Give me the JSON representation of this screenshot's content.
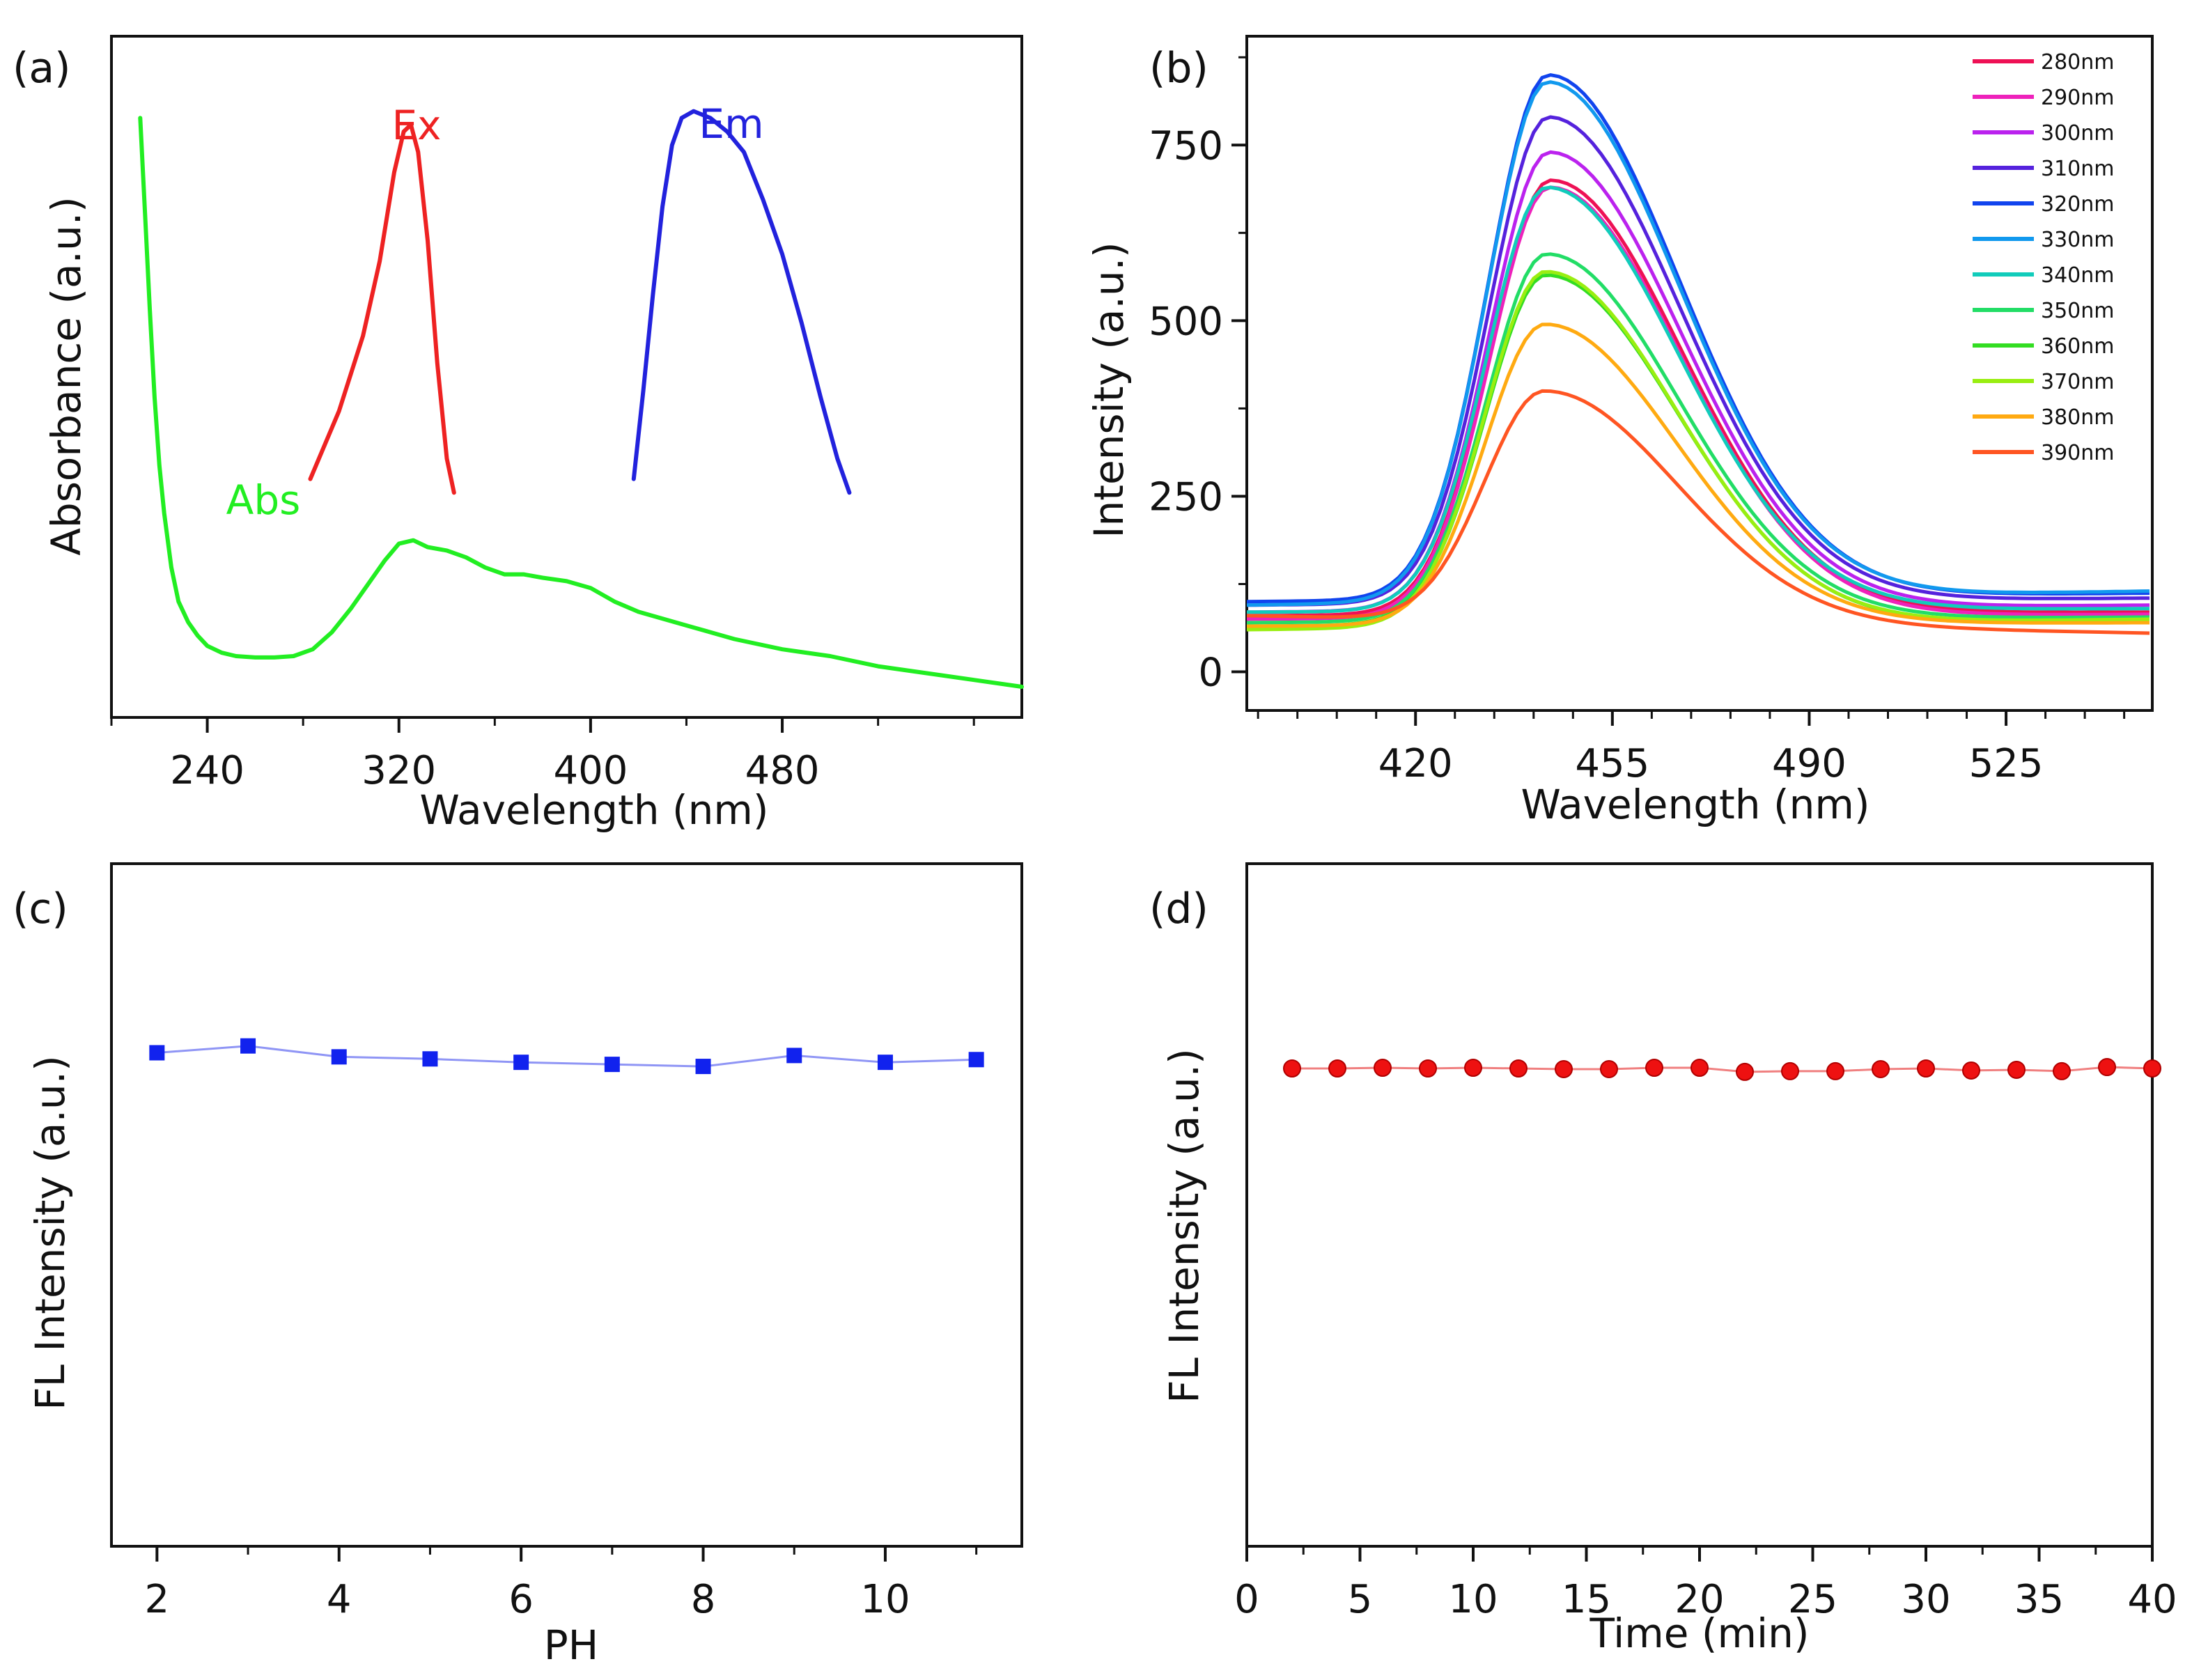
{
  "chart_data": [
    {
      "id": "a",
      "panel_label": "(a)",
      "type": "line",
      "xlabel": "Wavelength (nm)",
      "ylabel": "Absorbance (a.u.)",
      "xlim": [
        200,
        580
      ],
      "ylim": [
        0,
        1
      ],
      "xticks": [
        240,
        320,
        400,
        480
      ],
      "yticks_shown": false,
      "series": [
        {
          "name": "Ex",
          "color": "#ee2222",
          "x": [
            283,
            295,
            305,
            312,
            318,
            322,
            325,
            328,
            332,
            336,
            340,
            343
          ],
          "y": [
            0.35,
            0.45,
            0.56,
            0.67,
            0.8,
            0.86,
            0.87,
            0.83,
            0.7,
            0.52,
            0.38,
            0.33
          ]
        },
        {
          "name": "Em",
          "color": "#2222dd",
          "x": [
            418,
            422,
            426,
            430,
            434,
            438,
            443,
            450,
            457,
            464,
            472,
            480,
            488,
            496,
            503,
            508
          ],
          "y": [
            0.35,
            0.48,
            0.62,
            0.75,
            0.84,
            0.88,
            0.89,
            0.88,
            0.86,
            0.83,
            0.76,
            0.68,
            0.58,
            0.47,
            0.38,
            0.33
          ]
        },
        {
          "name": "Abs",
          "color": "#22ee22",
          "x": [
            212,
            214,
            216,
            218,
            220,
            222,
            225,
            228,
            232,
            236,
            240,
            246,
            252,
            260,
            268,
            276,
            284,
            292,
            300,
            308,
            314,
            320,
            326,
            332,
            340,
            348,
            356,
            364,
            372,
            380,
            390,
            400,
            410,
            420,
            440,
            460,
            480,
            500,
            520,
            540,
            560,
            580
          ],
          "y": [
            0.88,
            0.74,
            0.6,
            0.47,
            0.37,
            0.3,
            0.22,
            0.17,
            0.14,
            0.12,
            0.105,
            0.095,
            0.09,
            0.088,
            0.088,
            0.09,
            0.1,
            0.125,
            0.16,
            0.2,
            0.23,
            0.255,
            0.26,
            0.25,
            0.245,
            0.235,
            0.22,
            0.21,
            0.21,
            0.205,
            0.2,
            0.19,
            0.17,
            0.155,
            0.135,
            0.115,
            0.1,
            0.09,
            0.075,
            0.065,
            0.055,
            0.045
          ]
        }
      ],
      "annotations": [
        {
          "text": "Ex",
          "color": "#ee2222"
        },
        {
          "text": "Em",
          "color": "#2222dd"
        },
        {
          "text": "Abs",
          "color": "#22ee22"
        }
      ]
    },
    {
      "id": "b",
      "panel_label": "(b)",
      "type": "line",
      "xlabel": "Wavelength (nm)",
      "ylabel": "Intensity (a.u.)",
      "xlim": [
        390,
        551
      ],
      "ylim": [
        -55,
        905
      ],
      "xticks": [
        420,
        455,
        490,
        525
      ],
      "yticks": [
        0,
        250,
        500,
        750
      ],
      "legend_position": "top-right",
      "series": [
        {
          "name": "280nm",
          "color": "#ee1155",
          "peak": 700,
          "start": 80,
          "end": 85
        },
        {
          "name": "290nm",
          "color": "#ee22bb",
          "peak": 690,
          "start": 75,
          "end": 82
        },
        {
          "name": "300nm",
          "color": "#bb22ee",
          "peak": 740,
          "start": 85,
          "end": 95
        },
        {
          "name": "310nm",
          "color": "#5522dd",
          "peak": 790,
          "start": 95,
          "end": 105
        },
        {
          "name": "320nm",
          "color": "#1144ee",
          "peak": 850,
          "start": 100,
          "end": 112
        },
        {
          "name": "330nm",
          "color": "#1199ee",
          "peak": 840,
          "start": 95,
          "end": 115
        },
        {
          "name": "340nm",
          "color": "#11ccbb",
          "peak": 690,
          "start": 85,
          "end": 90
        },
        {
          "name": "350nm",
          "color": "#22dd66",
          "peak": 595,
          "start": 70,
          "end": 78
        },
        {
          "name": "360nm",
          "color": "#33dd22",
          "peak": 565,
          "start": 65,
          "end": 72
        },
        {
          "name": "370nm",
          "color": "#99ee11",
          "peak": 570,
          "start": 60,
          "end": 75
        },
        {
          "name": "380nm",
          "color": "#ffaa11",
          "peak": 495,
          "start": 65,
          "end": 70
        },
        {
          "name": "390nm",
          "color": "#ff5522",
          "peak": 400,
          "start": 80,
          "end": 55
        }
      ]
    },
    {
      "id": "c",
      "panel_label": "(c)",
      "type": "line",
      "xlabel": "PH",
      "ylabel": "FL Intensity (a.u.)",
      "xlim": [
        1.5,
        11.5
      ],
      "ylim": [
        0,
        1
      ],
      "xticks": [
        2,
        4,
        6,
        8,
        10
      ],
      "yticks_shown": false,
      "marker": "square",
      "series": [
        {
          "name": "FL",
          "color": "#1122ee",
          "x": [
            2,
            3,
            4,
            5,
            6,
            7,
            8,
            9,
            10,
            11
          ],
          "y": [
            0.723,
            0.733,
            0.717,
            0.714,
            0.709,
            0.706,
            0.703,
            0.719,
            0.709,
            0.713
          ]
        }
      ]
    },
    {
      "id": "d",
      "panel_label": "(d)",
      "type": "line",
      "xlabel": "Time (min)",
      "ylabel": "FL Intensity (a.u.)",
      "xlim": [
        0,
        40
      ],
      "ylim": [
        0,
        1
      ],
      "xticks": [
        0,
        5,
        10,
        15,
        20,
        25,
        30,
        35,
        40
      ],
      "yticks_shown": false,
      "marker": "circle",
      "series": [
        {
          "name": "FL",
          "color": "#ee1111",
          "x": [
            2,
            4,
            6,
            8,
            10,
            12,
            14,
            16,
            18,
            20,
            22,
            24,
            26,
            28,
            30,
            32,
            34,
            36,
            38,
            40
          ],
          "y": [
            0.7,
            0.7,
            0.701,
            0.7,
            0.701,
            0.7,
            0.699,
            0.699,
            0.701,
            0.701,
            0.695,
            0.696,
            0.696,
            0.699,
            0.7,
            0.697,
            0.698,
            0.696,
            0.702,
            0.7
          ]
        }
      ]
    }
  ]
}
